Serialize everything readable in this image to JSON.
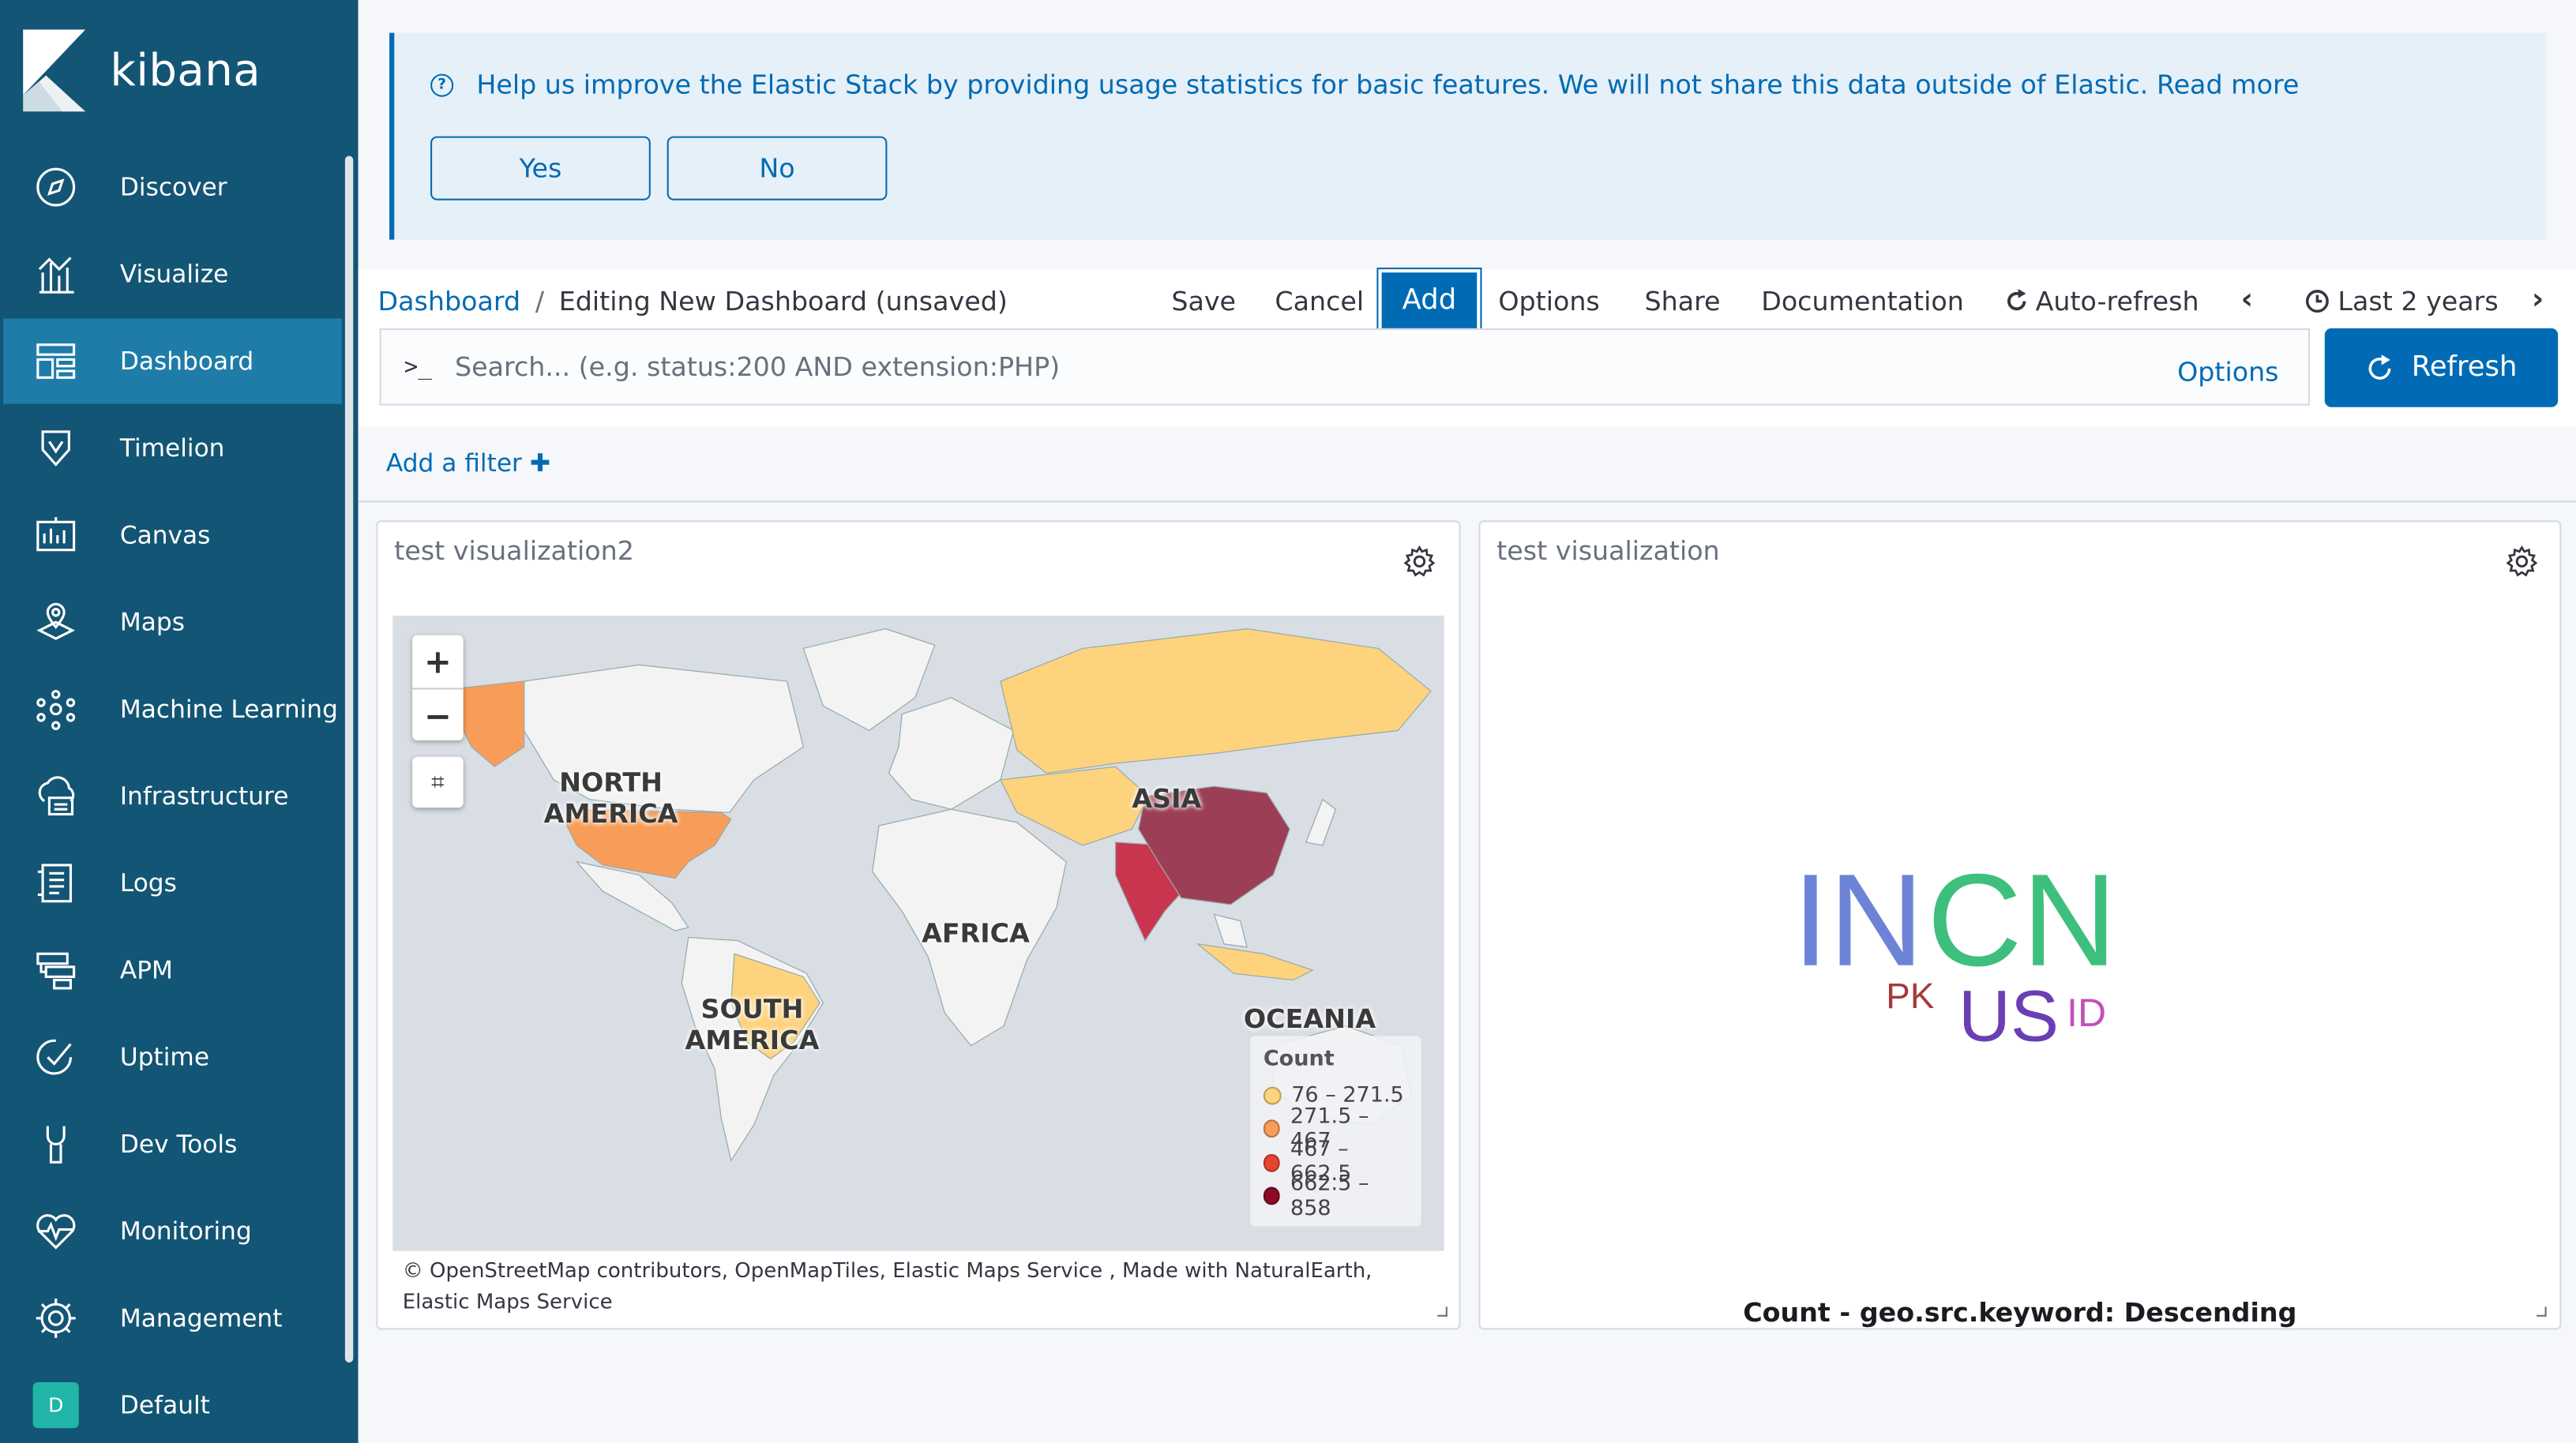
{
  "app": {
    "logo_text": "kibana"
  },
  "sidebar": {
    "items": [
      {
        "label": "Discover",
        "icon": "compass-icon"
      },
      {
        "label": "Visualize",
        "icon": "chart-icon"
      },
      {
        "label": "Dashboard",
        "icon": "dashboard-icon",
        "active": true
      },
      {
        "label": "Timelion",
        "icon": "timelion-icon"
      },
      {
        "label": "Canvas",
        "icon": "canvas-icon"
      },
      {
        "label": "Maps",
        "icon": "maps-icon"
      },
      {
        "label": "Machine Learning",
        "icon": "ml-icon"
      },
      {
        "label": "Infrastructure",
        "icon": "infrastructure-icon"
      },
      {
        "label": "Logs",
        "icon": "logs-icon"
      },
      {
        "label": "APM",
        "icon": "apm-icon"
      },
      {
        "label": "Uptime",
        "icon": "uptime-icon"
      },
      {
        "label": "Dev Tools",
        "icon": "wrench-icon"
      },
      {
        "label": "Monitoring",
        "icon": "heartbeat-icon"
      },
      {
        "label": "Management",
        "icon": "gear-icon"
      }
    ],
    "space": {
      "badge": "D",
      "label": "Default"
    }
  },
  "banner": {
    "text": "Help us improve the Elastic Stack by providing usage statistics for basic features. We will not share this data outside of Elastic. Read more",
    "yes_label": "Yes",
    "no_label": "No"
  },
  "topnav": {
    "breadcrumb_root": "Dashboard",
    "breadcrumb_sep": "/",
    "breadcrumb_current": "Editing New Dashboard (unsaved)",
    "save": "Save",
    "cancel": "Cancel",
    "add": "Add",
    "options": "Options",
    "share": "Share",
    "documentation": "Documentation",
    "auto_refresh": "Auto-refresh",
    "time_range": "Last 2 years"
  },
  "search": {
    "prompt": ">_",
    "placeholder": "Search... (e.g. status:200 AND extension:PHP)",
    "options_label": "Options",
    "refresh_label": "Refresh"
  },
  "filter": {
    "add_label": "Add a filter"
  },
  "panels": {
    "map": {
      "title": "test visualization2",
      "zoom_in": "+",
      "zoom_out": "−",
      "regions": {
        "north_america": "NORTH\nAMERICA",
        "south_america": "SOUTH\nAMERICA",
        "africa": "AFRICA",
        "asia": "ASIA",
        "oceania": "OCEANIA"
      },
      "legend": {
        "title": "Count",
        "items": [
          {
            "label": "76 – 271.5",
            "color": "#fdd37e"
          },
          {
            "label": "271.5 – 467",
            "color": "#f79d59"
          },
          {
            "label": "467 – 662.5",
            "color": "#e5452f"
          },
          {
            "label": "662.5 – 858",
            "color": "#8c0b25"
          }
        ]
      },
      "attribution": "© OpenStreetMap contributors, OpenMapTiles, Elastic Maps Service , Made with NaturalEarth, Elastic Maps Service"
    },
    "cloud": {
      "title": "test visualization",
      "words": [
        {
          "text": "IN",
          "color": "#6c83d6"
        },
        {
          "text": "CN",
          "color": "#3ebf7d"
        },
        {
          "text": "US",
          "color": "#6a3fb5"
        },
        {
          "text": "PK",
          "color": "#a7383d"
        },
        {
          "text": "ID",
          "color": "#c44fb8"
        }
      ],
      "caption": "Count - geo.src.keyword: Descending"
    }
  }
}
